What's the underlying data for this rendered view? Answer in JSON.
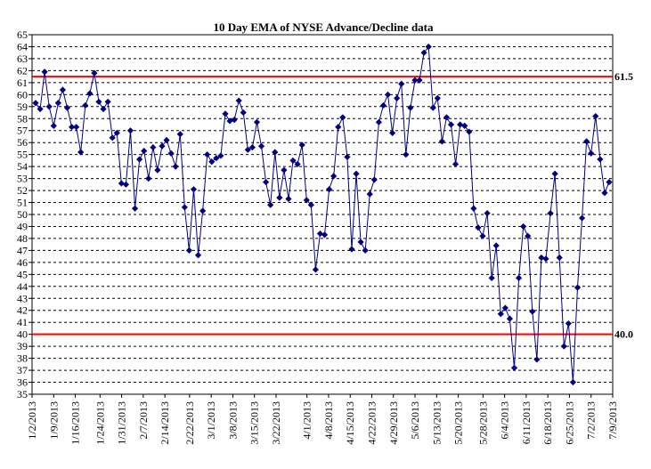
{
  "chart_data": {
    "type": "line",
    "title": "10 Day EMA of NYSE Advance/Decline data",
    "xlabel": "",
    "ylabel": "",
    "ylim": [
      35,
      65
    ],
    "yticks": [
      35,
      36,
      37,
      38,
      39,
      40,
      41,
      42,
      43,
      44,
      45,
      46,
      47,
      48,
      49,
      50,
      51,
      52,
      53,
      54,
      55,
      56,
      57,
      58,
      59,
      60,
      61,
      62,
      63,
      64,
      65
    ],
    "xlim": [
      "2013-01-02",
      "2013-07-09"
    ],
    "xticks": [
      "1/2/2013",
      "1/9/2013",
      "1/16/2013",
      "1/24/2013",
      "1/31/2013",
      "2/7/2013",
      "2/14/2013",
      "2/22/2013",
      "3/1/2013",
      "3/8/2013",
      "3/15/2013",
      "3/22/2013",
      "4/1/2013",
      "4/8/2013",
      "4/15/2013",
      "4/22/2013",
      "4/29/2013",
      "5/6/2013",
      "5/13/2013",
      "5/20/2013",
      "5/28/2013",
      "6/4/2013",
      "6/11/2013",
      "6/18/2013",
      "6/25/2013",
      "7/2/2013",
      "7/9/2013"
    ],
    "grid": true,
    "legend": "none",
    "colors": {
      "line": "#000080",
      "marker": "#000080",
      "reference": "#ff0000",
      "grid": "#000000"
    },
    "series": [
      {
        "values": [
          59.3,
          58.8,
          61.9,
          59.0,
          57.4,
          59.3,
          60.4,
          58.9,
          57.3,
          57.3,
          55.2,
          59.1,
          60.1,
          61.8,
          59.4,
          58.8,
          59.4,
          56.4,
          56.8,
          52.6,
          52.5,
          57.0,
          50.5,
          54.6,
          55.3,
          53.0,
          55.6,
          53.7,
          55.7,
          56.2,
          55.1,
          54.0,
          56.7,
          50.6,
          47.0,
          52.1,
          46.6,
          50.3,
          55.0,
          54.4,
          54.7,
          54.9,
          58.4,
          57.8,
          57.9,
          59.5,
          58.5,
          55.4,
          55.6,
          57.7,
          55.7,
          52.7,
          50.8,
          55.2,
          51.4,
          53.7,
          51.3,
          54.5,
          54.2,
          55.8,
          51.2,
          50.8,
          45.4,
          48.4,
          48.3,
          52.1,
          53.2,
          57.3,
          58.1,
          54.8,
          47.1,
          53.4,
          47.7,
          47.0,
          51.7,
          52.9,
          57.7,
          59.1,
          60.0,
          56.8,
          59.7,
          60.9,
          55.0,
          58.9,
          61.2,
          61.2,
          63.5,
          64.0,
          58.9,
          59.7,
          56.1,
          58.1,
          57.5,
          54.2,
          57.5,
          57.4,
          56.9,
          50.5,
          48.9,
          48.2,
          50.1,
          44.7,
          47.4,
          41.7,
          42.2,
          41.3,
          37.2,
          44.7,
          49.0,
          48.2,
          41.9,
          37.9,
          46.4,
          46.3,
          50.1,
          53.4,
          46.4,
          39.0,
          40.9,
          36.0,
          43.9,
          49.7,
          56.1,
          55.1,
          58.2,
          54.6,
          51.8,
          52.7
        ]
      }
    ],
    "reference_lines": [
      {
        "value": 61.5,
        "label": "61.5"
      },
      {
        "value": 40.0,
        "label": "40.0"
      }
    ]
  }
}
